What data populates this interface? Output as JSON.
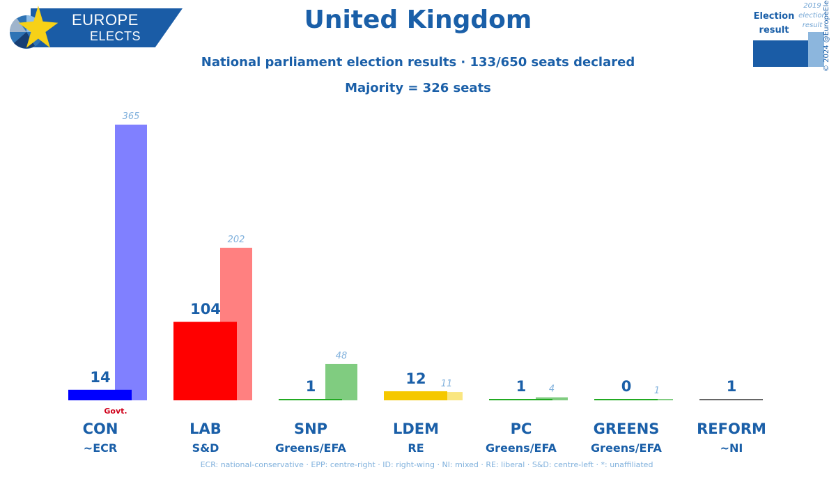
{
  "header": {
    "logo_line1": "EUROPE",
    "logo_line2": "ELECTS",
    "title": "United Kingdom",
    "subtitle": "National parliament election results · 133/650 seats declared",
    "majority": "Majority = 326 seats"
  },
  "legend": {
    "current_label": "Election result",
    "previous_label": "2019 election result",
    "current_color": "#1a5ca6",
    "previous_color": "#8cb6dd"
  },
  "copyright": "© 2024 @EuropeElects",
  "footnote": "ECR: national-conservative · EPP: centre-right · ID: right-wing · NI: mixed · RE: liberal · S&D: centre-left · *: unaffiliated",
  "chart_data": {
    "type": "bar",
    "categories": [
      "CON",
      "LAB",
      "SNP",
      "LDEM",
      "PC",
      "GREENS",
      "REFORM"
    ],
    "groups": [
      "~ECR",
      "S&D",
      "Greens/EFA",
      "RE",
      "Greens/EFA",
      "Greens/EFA",
      "~NI"
    ],
    "series": [
      {
        "name": "Election result",
        "values": [
          14,
          104,
          1,
          12,
          1,
          0,
          1
        ]
      },
      {
        "name": "2019 election result",
        "values": [
          365,
          202,
          48,
          11,
          4,
          1,
          null
        ]
      }
    ],
    "colors": [
      "#0000ff",
      "#ff0000",
      "#22aa22",
      "#f5c800",
      "#22aa22",
      "#22aa22",
      "#666666"
    ],
    "prev_colors": [
      "#8080ff",
      "#ff8080",
      "#80cc80",
      "#fae680",
      "#80cc80",
      "#80cc80",
      "#aaaaaa"
    ],
    "government_party": "CON",
    "govt_label": "Govt.",
    "ylim": [
      0,
      380
    ]
  }
}
